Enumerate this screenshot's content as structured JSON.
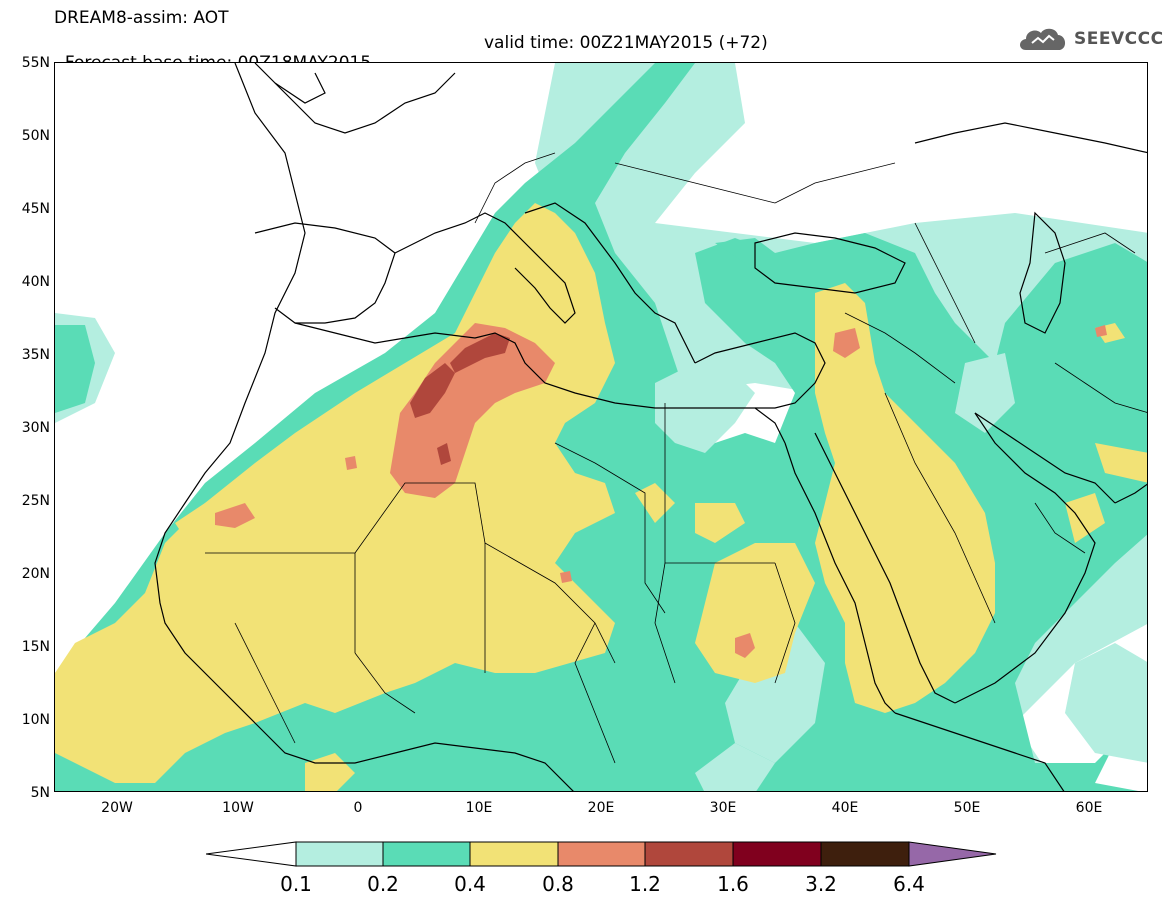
{
  "header": {
    "title": "DREAM8-assim: AOT",
    "base_time": "Forecast base time: 00Z18MAY2015",
    "valid_time": "valid time: 00Z21MAY2015 (+72)"
  },
  "logo": {
    "text": "SEEVCCC",
    "icon": "cloud-icon"
  },
  "map": {
    "lat_labels": [
      "55N",
      "50N",
      "45N",
      "40N",
      "35N",
      "30N",
      "25N",
      "20N",
      "15N",
      "10N",
      "5N"
    ],
    "lon_labels": [
      "20W",
      "10W",
      "0",
      "10E",
      "20E",
      "30E",
      "40E",
      "50E",
      "60E"
    ],
    "lon_range": [
      -25,
      65
    ],
    "lat_range": [
      5,
      55
    ],
    "land_outline_color": "#000000"
  },
  "legend": {
    "ticks": [
      "0.1",
      "0.2",
      "0.4",
      "0.8",
      "1.2",
      "1.6",
      "3.2",
      "6.4"
    ],
    "colors": [
      "#ffffff",
      "#b4eee0",
      "#5adcb6",
      "#f2e276",
      "#e8896a",
      "#b0473c",
      "#80001e",
      "#3e1f0d",
      "#9668a8"
    ]
  }
}
